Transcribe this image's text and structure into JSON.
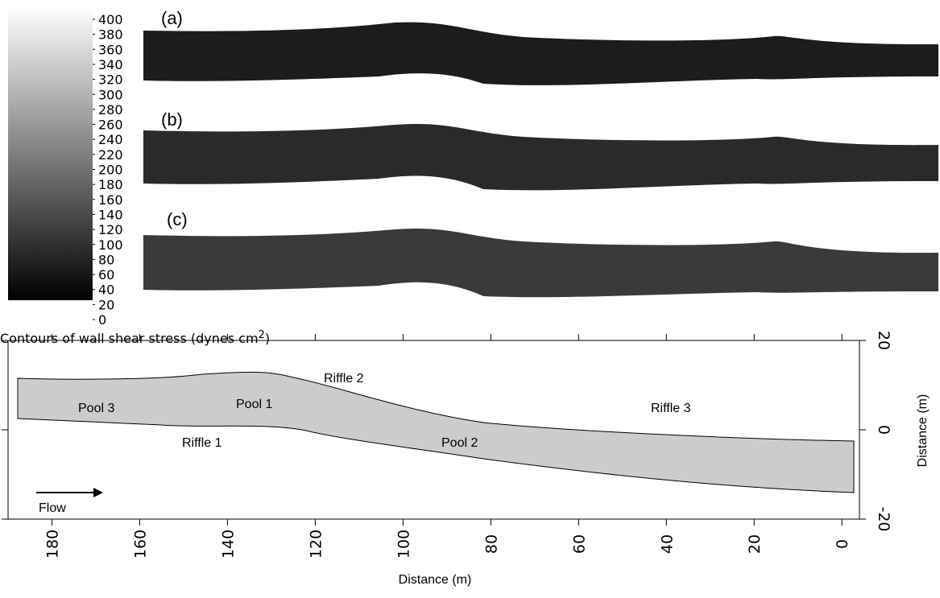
{
  "chart_data": [
    {
      "type": "colorbar",
      "title": "Contours of wall shear stress (dynes cm",
      "title_sup": "2",
      "title_end": ")",
      "ylim": [
        0,
        400
      ],
      "yticks": [
        0,
        20,
        40,
        60,
        80,
        100,
        120,
        140,
        160,
        180,
        200,
        220,
        240,
        260,
        280,
        300,
        320,
        340,
        360,
        380,
        400
      ],
      "panels": [
        "(a)",
        "(b)",
        "(c)"
      ]
    },
    {
      "type": "map",
      "xlabel": "Distance (m)",
      "ylabel": "Distance (m)",
      "xlim": [
        190,
        -4
      ],
      "xticks": [
        180,
        160,
        140,
        120,
        100,
        80,
        60,
        40,
        20,
        0
      ],
      "ylim": [
        -20,
        20
      ],
      "yticks": [
        -20,
        0,
        20
      ],
      "annotations": [
        "Pool 3",
        "Pool 1",
        "Riffle 2",
        "Riffle 1",
        "Pool 2",
        "Riffle 3",
        "Flow"
      ]
    }
  ]
}
